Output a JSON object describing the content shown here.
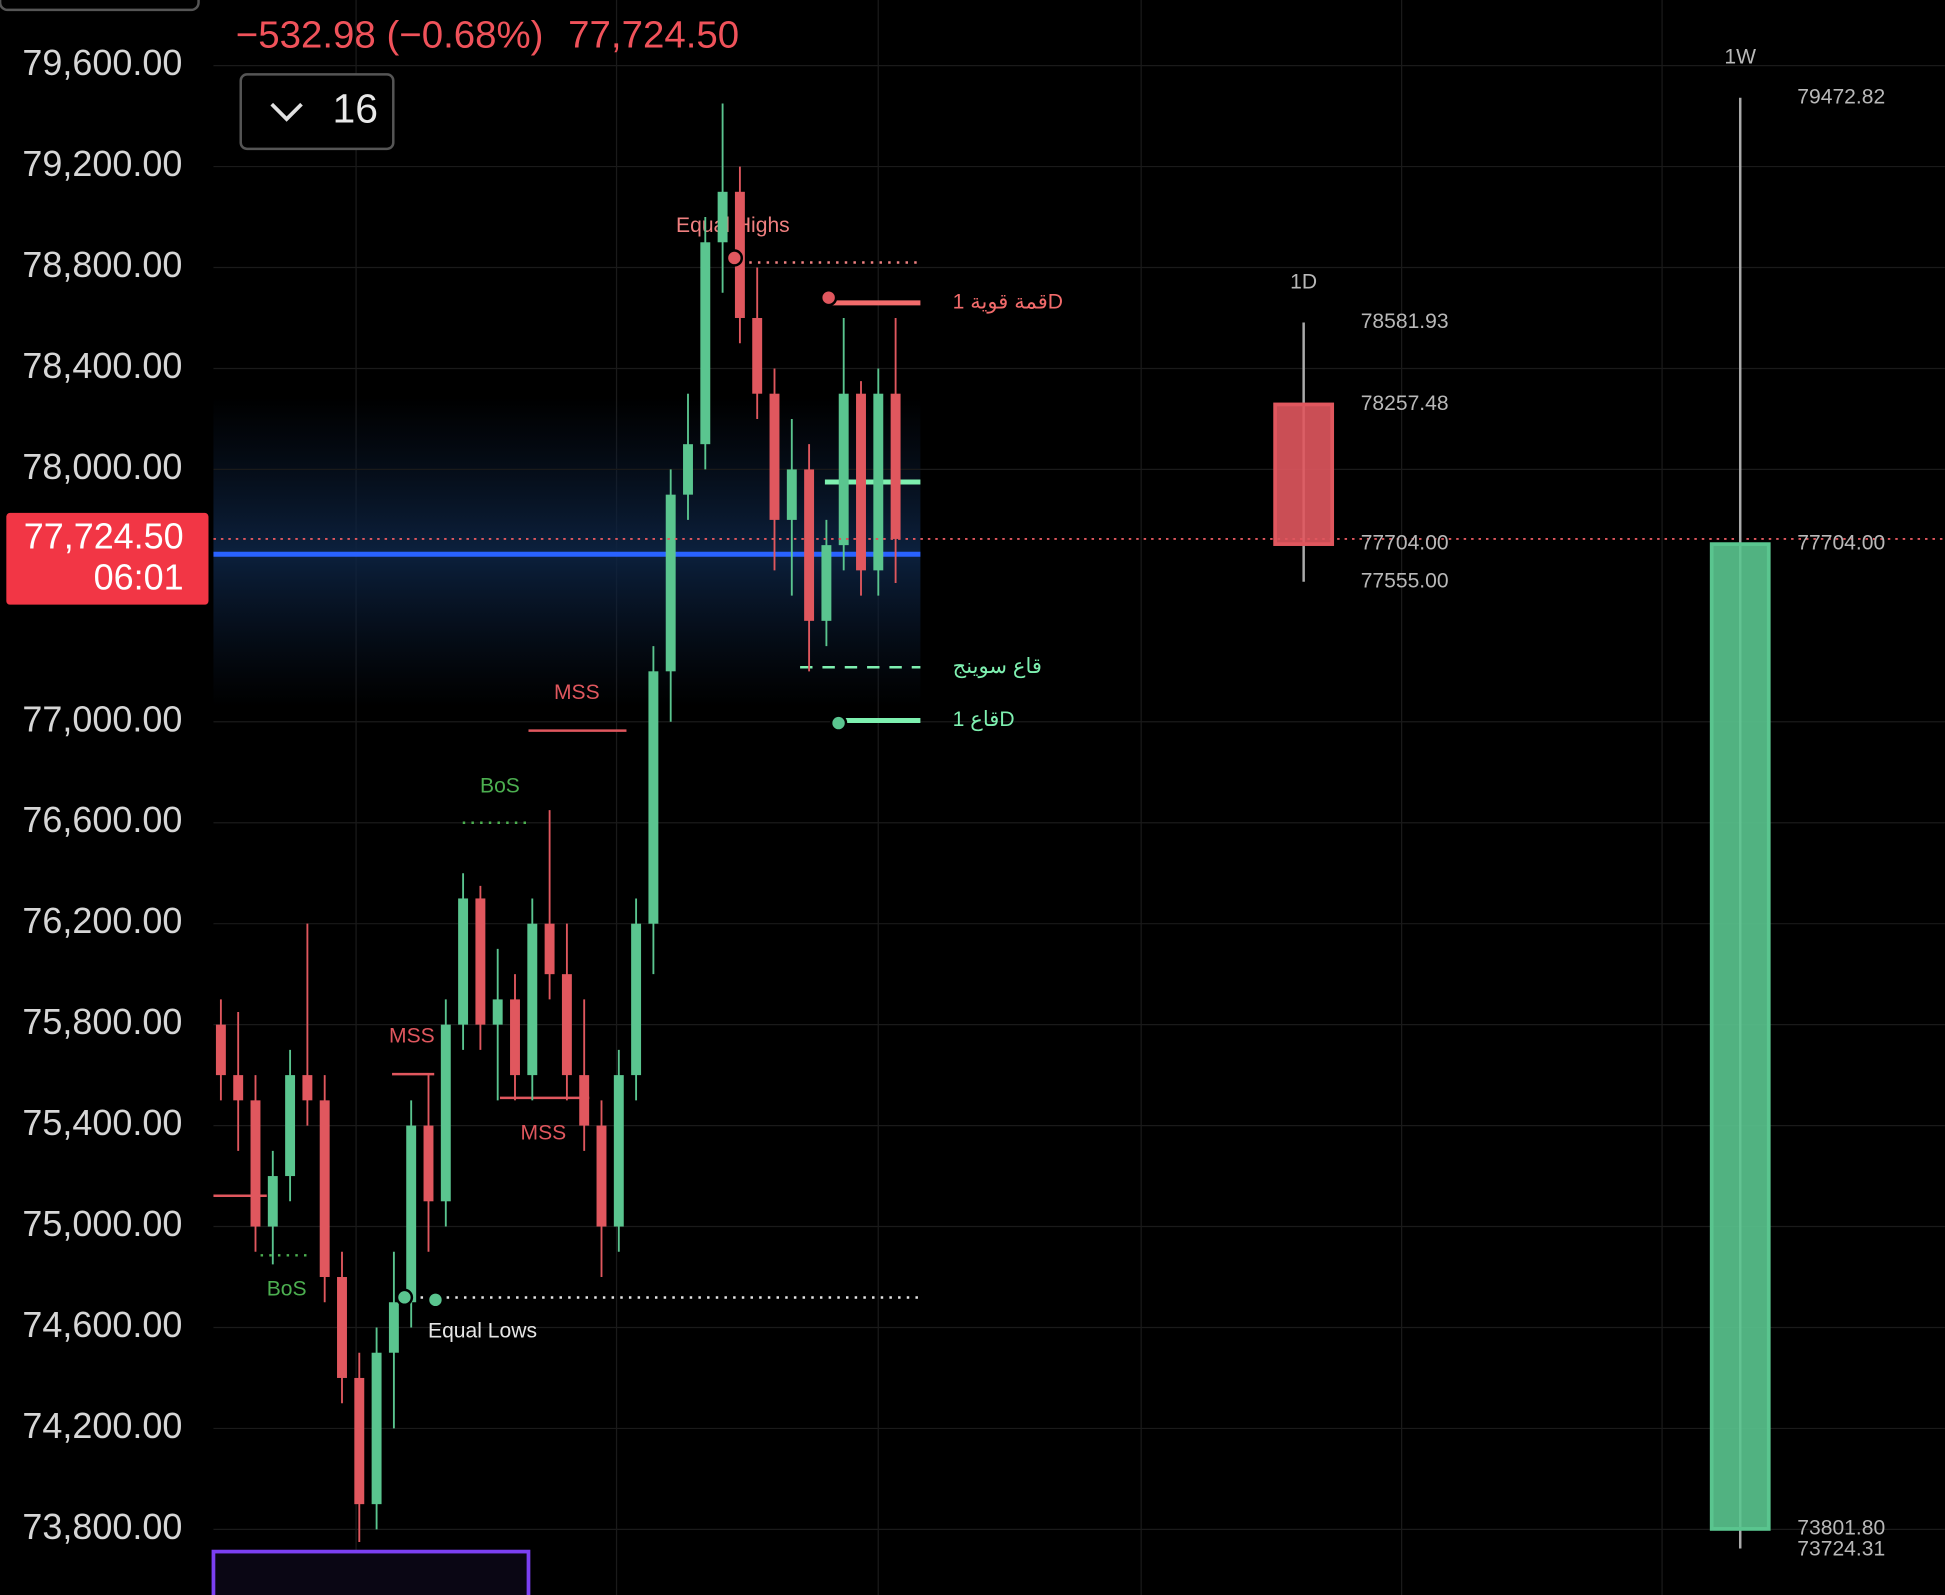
{
  "header": {
    "change": "−532.98 (−0.68%)",
    "interval": "16"
  },
  "chart_data": {
    "type": "candlestick",
    "ylim": [
      73540,
      79860
    ],
    "yticks": [
      {
        "value": 79600,
        "label": "79,600.00"
      },
      {
        "value": 79200,
        "label": "79,200.00"
      },
      {
        "value": 78800,
        "label": "78,800.00"
      },
      {
        "value": 78400,
        "label": "78,400.00"
      },
      {
        "value": 78000,
        "label": "78,000.00"
      },
      {
        "value": 77000,
        "label": "77,000.00"
      },
      {
        "value": 76600,
        "label": "76,600.00"
      },
      {
        "value": 76200,
        "label": "76,200.00"
      },
      {
        "value": 75800,
        "label": "75,800.00"
      },
      {
        "value": 75400,
        "label": "75,400.00"
      },
      {
        "value": 75000,
        "label": "75,000.00"
      },
      {
        "value": 74600,
        "label": "74,600.00"
      },
      {
        "value": 74200,
        "label": "74,200.00"
      },
      {
        "value": 73800,
        "label": "73,800.00"
      }
    ],
    "grid": true,
    "up_color": "#5ac58f",
    "down_color": "#e0575e",
    "last_price": {
      "value": 77724.5,
      "label": "77,724.50",
      "countdown": "06:01"
    },
    "candles": {
      "open": [
        75800,
        75600,
        75500,
        75000,
        75200,
        75600,
        75500,
        74800,
        74400,
        73900,
        74500,
        74700,
        75400,
        75100,
        75800,
        76300,
        75800,
        75900,
        75600,
        76200,
        76000,
        75600,
        75400,
        75000,
        75600,
        76200,
        77200,
        77900,
        78100,
        78900,
        79100,
        78600,
        78300,
        77800,
        78000,
        77400,
        77700,
        78300,
        77600,
        78300
      ],
      "high": [
        75900,
        75850,
        75600,
        75300,
        75700,
        76200,
        75600,
        74900,
        74500,
        74600,
        74900,
        75500,
        75600,
        75900,
        76400,
        76350,
        76100,
        76000,
        76300,
        76650,
        76200,
        75900,
        75500,
        75700,
        76300,
        77300,
        78000,
        78300,
        79000,
        79450,
        79200,
        78800,
        78400,
        78200,
        78100,
        77800,
        78600,
        78350,
        78400,
        78600
      ],
      "low": [
        75500,
        75300,
        74900,
        74850,
        75100,
        75400,
        74700,
        74300,
        73750,
        73800,
        74200,
        74600,
        74900,
        75000,
        75700,
        75700,
        75500,
        75500,
        75500,
        75900,
        75500,
        75300,
        74800,
        74900,
        75500,
        76000,
        77000,
        77800,
        78000,
        78700,
        78500,
        78200,
        77600,
        77500,
        77200,
        77300,
        77600,
        77500,
        77500,
        77550
      ],
      "close": [
        75600,
        75500,
        75000,
        75200,
        75600,
        75500,
        74800,
        74400,
        73900,
        74500,
        74700,
        75400,
        75100,
        75800,
        76300,
        75800,
        75900,
        75600,
        76200,
        76000,
        75600,
        75400,
        75000,
        75600,
        76200,
        77200,
        77900,
        78100,
        78900,
        79100,
        78600,
        78300,
        77800,
        78000,
        77400,
        77700,
        78300,
        77600,
        78300,
        77724.5
      ]
    },
    "levels": [
      {
        "label": "Equal Highs",
        "value": 78820,
        "color": "#f08080",
        "style": "dotted"
      },
      {
        "label": "قمة قوية 1D",
        "value": 78660,
        "color": "#f26b6b",
        "style": "thick"
      },
      {
        "value": 77950,
        "color": "#7ef0b0",
        "style": "thick"
      },
      {
        "value": 77664,
        "color": "#2962ff",
        "style": "thick"
      },
      {
        "label": "قاع سوينج",
        "value": 77216,
        "color": "#7ef0b0",
        "style": "dashed"
      },
      {
        "label": "قاع 1D",
        "value": 77005,
        "color": "#7ef0b0",
        "style": "thick"
      },
      {
        "label": "MSS",
        "value": 76965,
        "color": "#e0575e",
        "style": "solid"
      },
      {
        "label": "BoS",
        "value": 76600,
        "color": "#4caf50",
        "style": "dotted"
      },
      {
        "label": "MSS",
        "value": 75604,
        "color": "#e0575e",
        "style": "solid"
      },
      {
        "label": "MSS",
        "value": 75510,
        "color": "#e0575e",
        "style": "solid"
      },
      {
        "label": "BoS",
        "value": 74886,
        "color": "#4caf50",
        "style": "dotted"
      },
      {
        "label": "Equal Lows",
        "value": 74719,
        "color": "#e6e6e6",
        "style": "dotted"
      },
      {
        "value": 75122,
        "color": "#e0575e",
        "style": "solid"
      }
    ],
    "htf": [
      {
        "label": "1D",
        "open": 78257.48,
        "high": 78581.93,
        "low": {
          "value": 77555,
          "label": "77555.00"
        },
        "close": {
          "value": 77704,
          "label": "77704.00"
        }
      },
      {
        "label": "1W",
        "open": {
          "value": 73801.8,
          "label": "73801.80"
        },
        "high": 79472.82,
        "low": 73724.31,
        "close": {
          "value": 77704,
          "label": "77704.00"
        }
      }
    ]
  }
}
